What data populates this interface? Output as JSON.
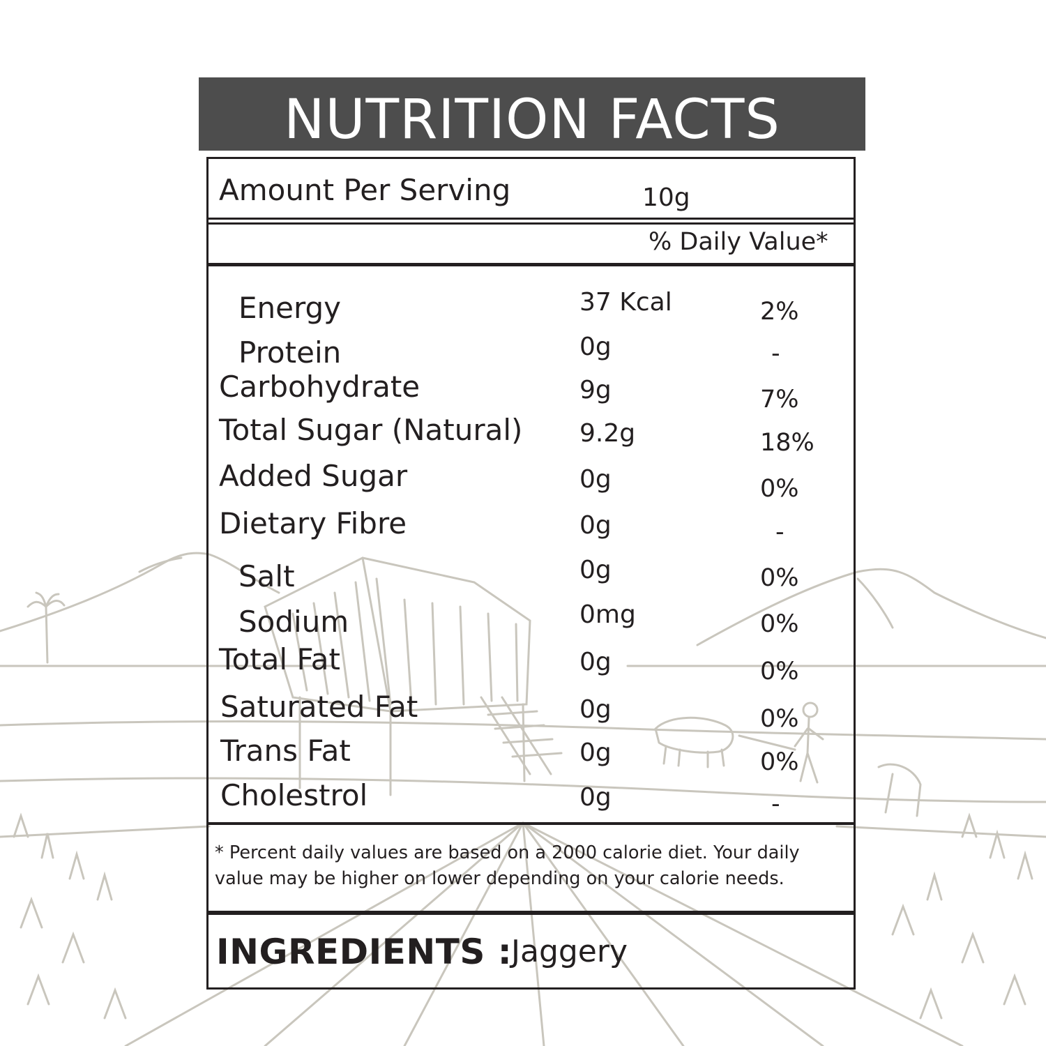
{
  "header": {
    "title": "NUTRITION FACTS"
  },
  "serving": {
    "label": "Amount Per Serving",
    "value": "10g"
  },
  "daily_value_header": "% Daily Value*",
  "nutrients": [
    {
      "name": "Energy",
      "amount": "37 Kcal",
      "dv": "2%"
    },
    {
      "name": "Protein",
      "amount": "0g",
      "dv": "-"
    },
    {
      "name": "Carbohydrate",
      "amount": "9g",
      "dv": "7%"
    },
    {
      "name": "Total Sugar (Natural)",
      "amount": "9.2g",
      "dv": "18%"
    },
    {
      "name": "Added Sugar",
      "amount": "0g",
      "dv": "0%"
    },
    {
      "name": "Dietary Fibre",
      "amount": "0g",
      "dv": "-"
    },
    {
      "name": "Salt",
      "amount": "0g",
      "dv": "0%"
    },
    {
      "name": "Sodium",
      "amount": "0mg",
      "dv": "0%"
    },
    {
      "name": "Total Fat",
      "amount": "0g",
      "dv": "0%"
    },
    {
      "name": "Saturated Fat",
      "amount": "0g",
      "dv": "0%"
    },
    {
      "name": "Trans Fat",
      "amount": "0g",
      "dv": "0%"
    },
    {
      "name": "Cholestrol",
      "amount": "0g",
      "dv": "-"
    }
  ],
  "footnote": {
    "line1": "* Percent daily values are based on a 2000 calorie diet. Your daily",
    "line2": "value may be higher on lower depending on your calorie needs."
  },
  "ingredients": {
    "label": "INGREDIENTS :",
    "value": "Jaggery"
  },
  "colors": {
    "header_bg": "#4d4d4d",
    "text": "#231f20",
    "sketch": "#c9c6bd"
  }
}
